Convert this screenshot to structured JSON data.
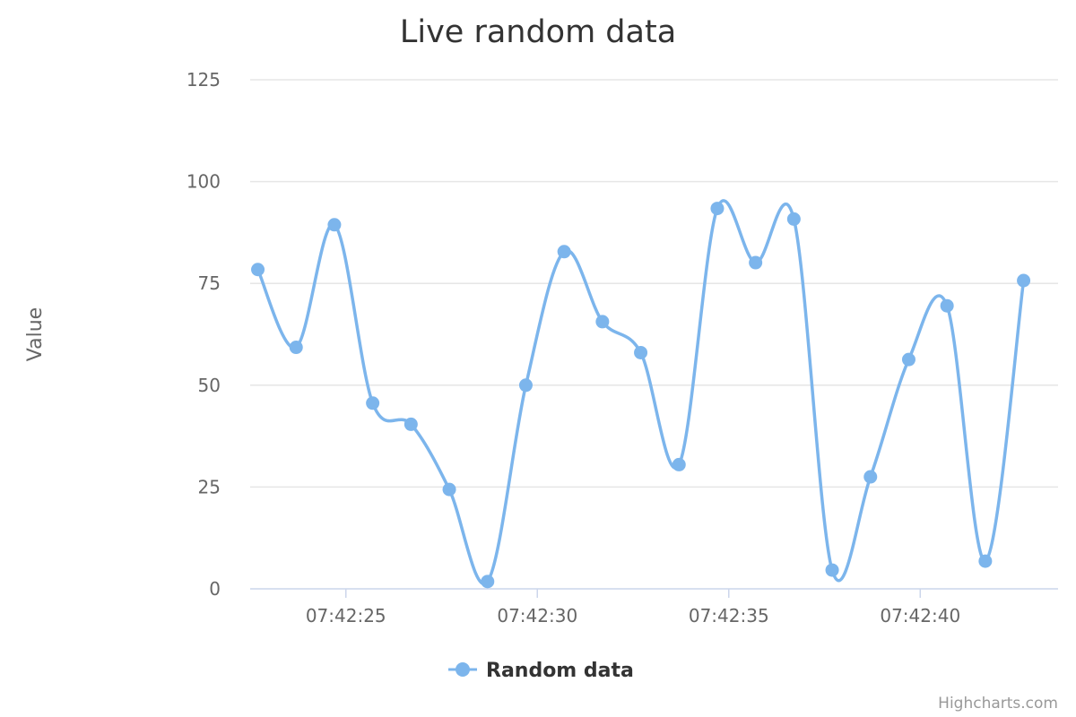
{
  "chart_data": {
    "type": "line",
    "title": "Live random data",
    "ylabel": "Value",
    "xlabel": "",
    "ylim": [
      0,
      125
    ],
    "yticks": [
      0,
      25,
      50,
      75,
      100,
      125
    ],
    "xlim": [
      "07:42:22.5",
      "07:42:43.6"
    ],
    "xticks": [
      "07:42:25",
      "07:42:30",
      "07:42:35",
      "07:42:40"
    ],
    "grid": true,
    "legend": "bottom-center",
    "series": [
      {
        "name": "Random data",
        "color": "#7cb5ec",
        "x": [
          "07:42:22.7",
          "07:42:23.7",
          "07:42:24.7",
          "07:42:25.7",
          "07:42:26.7",
          "07:42:27.7",
          "07:42:28.7",
          "07:42:29.7",
          "07:42:30.7",
          "07:42:31.7",
          "07:42:32.7",
          "07:42:33.7",
          "07:42:34.7",
          "07:42:35.7",
          "07:42:36.7",
          "07:42:37.7",
          "07:42:38.7",
          "07:42:39.7",
          "07:42:40.7",
          "07:42:41.7",
          "07:42:42.7"
        ],
        "values": [
          78.4,
          59.3,
          89.4,
          45.6,
          40.4,
          24.4,
          1.8,
          50.0,
          82.8,
          65.6,
          58.0,
          30.5,
          93.4,
          80.1,
          90.8,
          4.6,
          27.5,
          56.3,
          69.5,
          6.8,
          75.7
        ]
      }
    ],
    "credits": "Highcharts.com"
  }
}
